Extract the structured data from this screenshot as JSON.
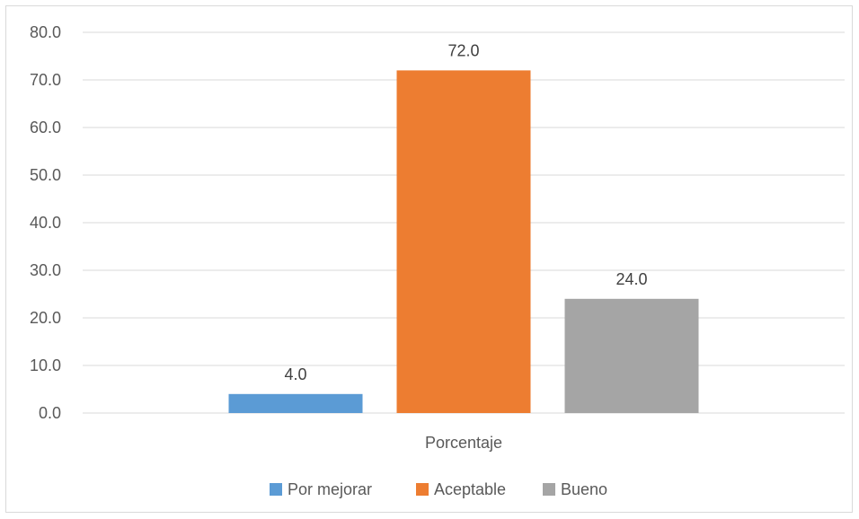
{
  "chart_data": {
    "type": "bar",
    "title": "",
    "xlabel": "",
    "ylabel": "",
    "categories": [
      "Porcentaje"
    ],
    "series": [
      {
        "name": "Por mejorar",
        "values": [
          4.0
        ],
        "color": "#5b9bd5",
        "label": "4.0"
      },
      {
        "name": "Aceptable",
        "values": [
          72.0
        ],
        "color": "#ed7d31",
        "label": "72.0"
      },
      {
        "name": "Bueno",
        "values": [
          24.0
        ],
        "color": "#a5a5a5",
        "label": "24.0"
      }
    ],
    "ylim": [
      0,
      80
    ],
    "yticks": [
      "0.0",
      "10.0",
      "20.0",
      "30.0",
      "40.0",
      "50.0",
      "60.0",
      "70.0",
      "80.0"
    ],
    "grid": true,
    "legend_position": "bottom"
  }
}
